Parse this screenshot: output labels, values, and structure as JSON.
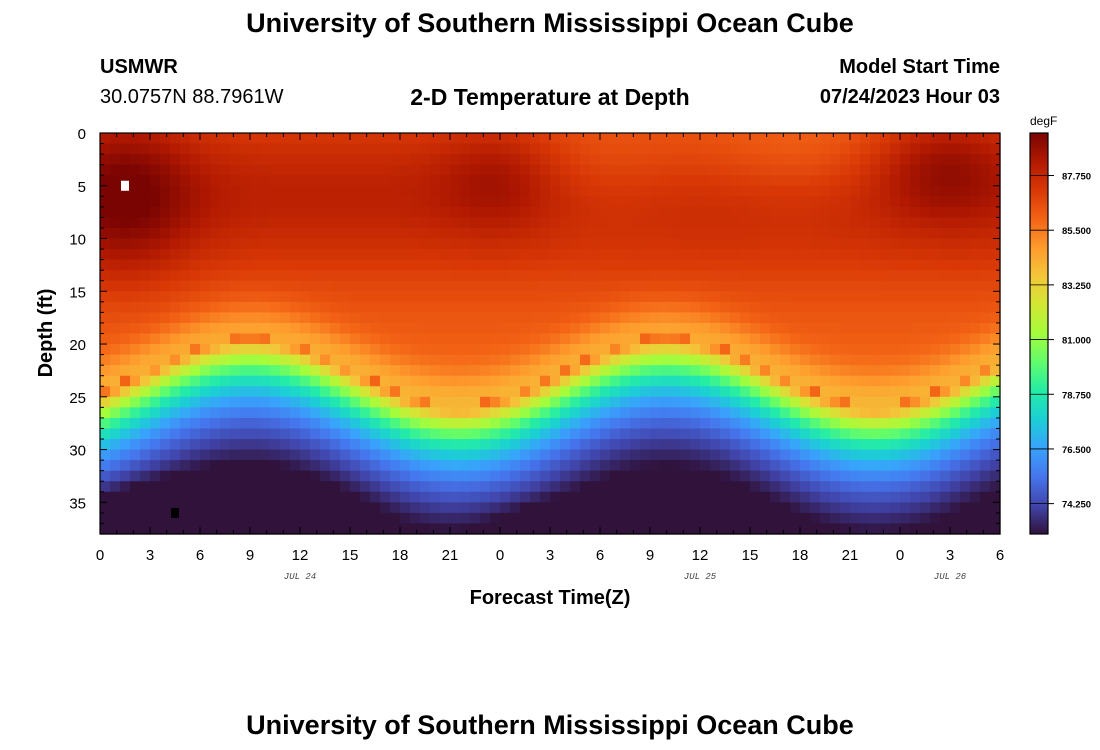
{
  "page": {
    "title_top": "University of Southern Mississippi Ocean Cube",
    "title_bottom": "University of Southern Mississippi Ocean Cube",
    "station": "USMWR",
    "coords": "30.0757N  88.7961W",
    "subtitle": "2-D Temperature at Depth",
    "model_label": "Model Start Time",
    "model_time": "07/24/2023 Hour 03"
  },
  "chart_data": {
    "type": "heatmap",
    "title": "2-D Temperature at Depth",
    "xlabel": "Forecast Time(Z)",
    "ylabel": "Depth (ft)",
    "x_range_hours": [
      0,
      54
    ],
    "y_range_ft": [
      0,
      38
    ],
    "x_tick_labels": [
      "0",
      "3",
      "6",
      "9",
      "12",
      "15",
      "18",
      "21",
      "0",
      "3",
      "6",
      "9",
      "12",
      "15",
      "18",
      "21",
      "0",
      "3",
      "6"
    ],
    "y_tick_labels": [
      "0",
      "5",
      "10",
      "15",
      "20",
      "25",
      "30",
      "35"
    ],
    "date_labels": [
      {
        "text": "JUL 24",
        "hour": 12
      },
      {
        "text": "JUL 25",
        "hour": 36
      },
      {
        "text": "JUL 26",
        "hour": 51
      }
    ],
    "colorbar": {
      "unit": "degF",
      "min": 73.0,
      "max": 89.5,
      "tick_labels": [
        "87.750",
        "85.500",
        "83.250",
        "81.000",
        "78.750",
        "76.500",
        "74.250"
      ],
      "tick_values": [
        87.75,
        85.5,
        83.25,
        81.0,
        78.75,
        76.5,
        74.25
      ]
    },
    "markers": [
      {
        "name": "max-marker",
        "hour": 1.5,
        "depth": 5,
        "color": "#ffffff"
      },
      {
        "name": "min-marker",
        "hour": 4.5,
        "depth": 36,
        "color": "#000000"
      }
    ],
    "colors": {
      "scale": [
        "#30123b",
        "#4145ab",
        "#4675ed",
        "#39a2fc",
        "#1bcfd4",
        "#24eca6",
        "#61fc6c",
        "#a4fc3b",
        "#d1e834",
        "#f3c63a",
        "#fe9b2d",
        "#f36315",
        "#d93806",
        "#b11901",
        "#7a0402"
      ]
    }
  }
}
